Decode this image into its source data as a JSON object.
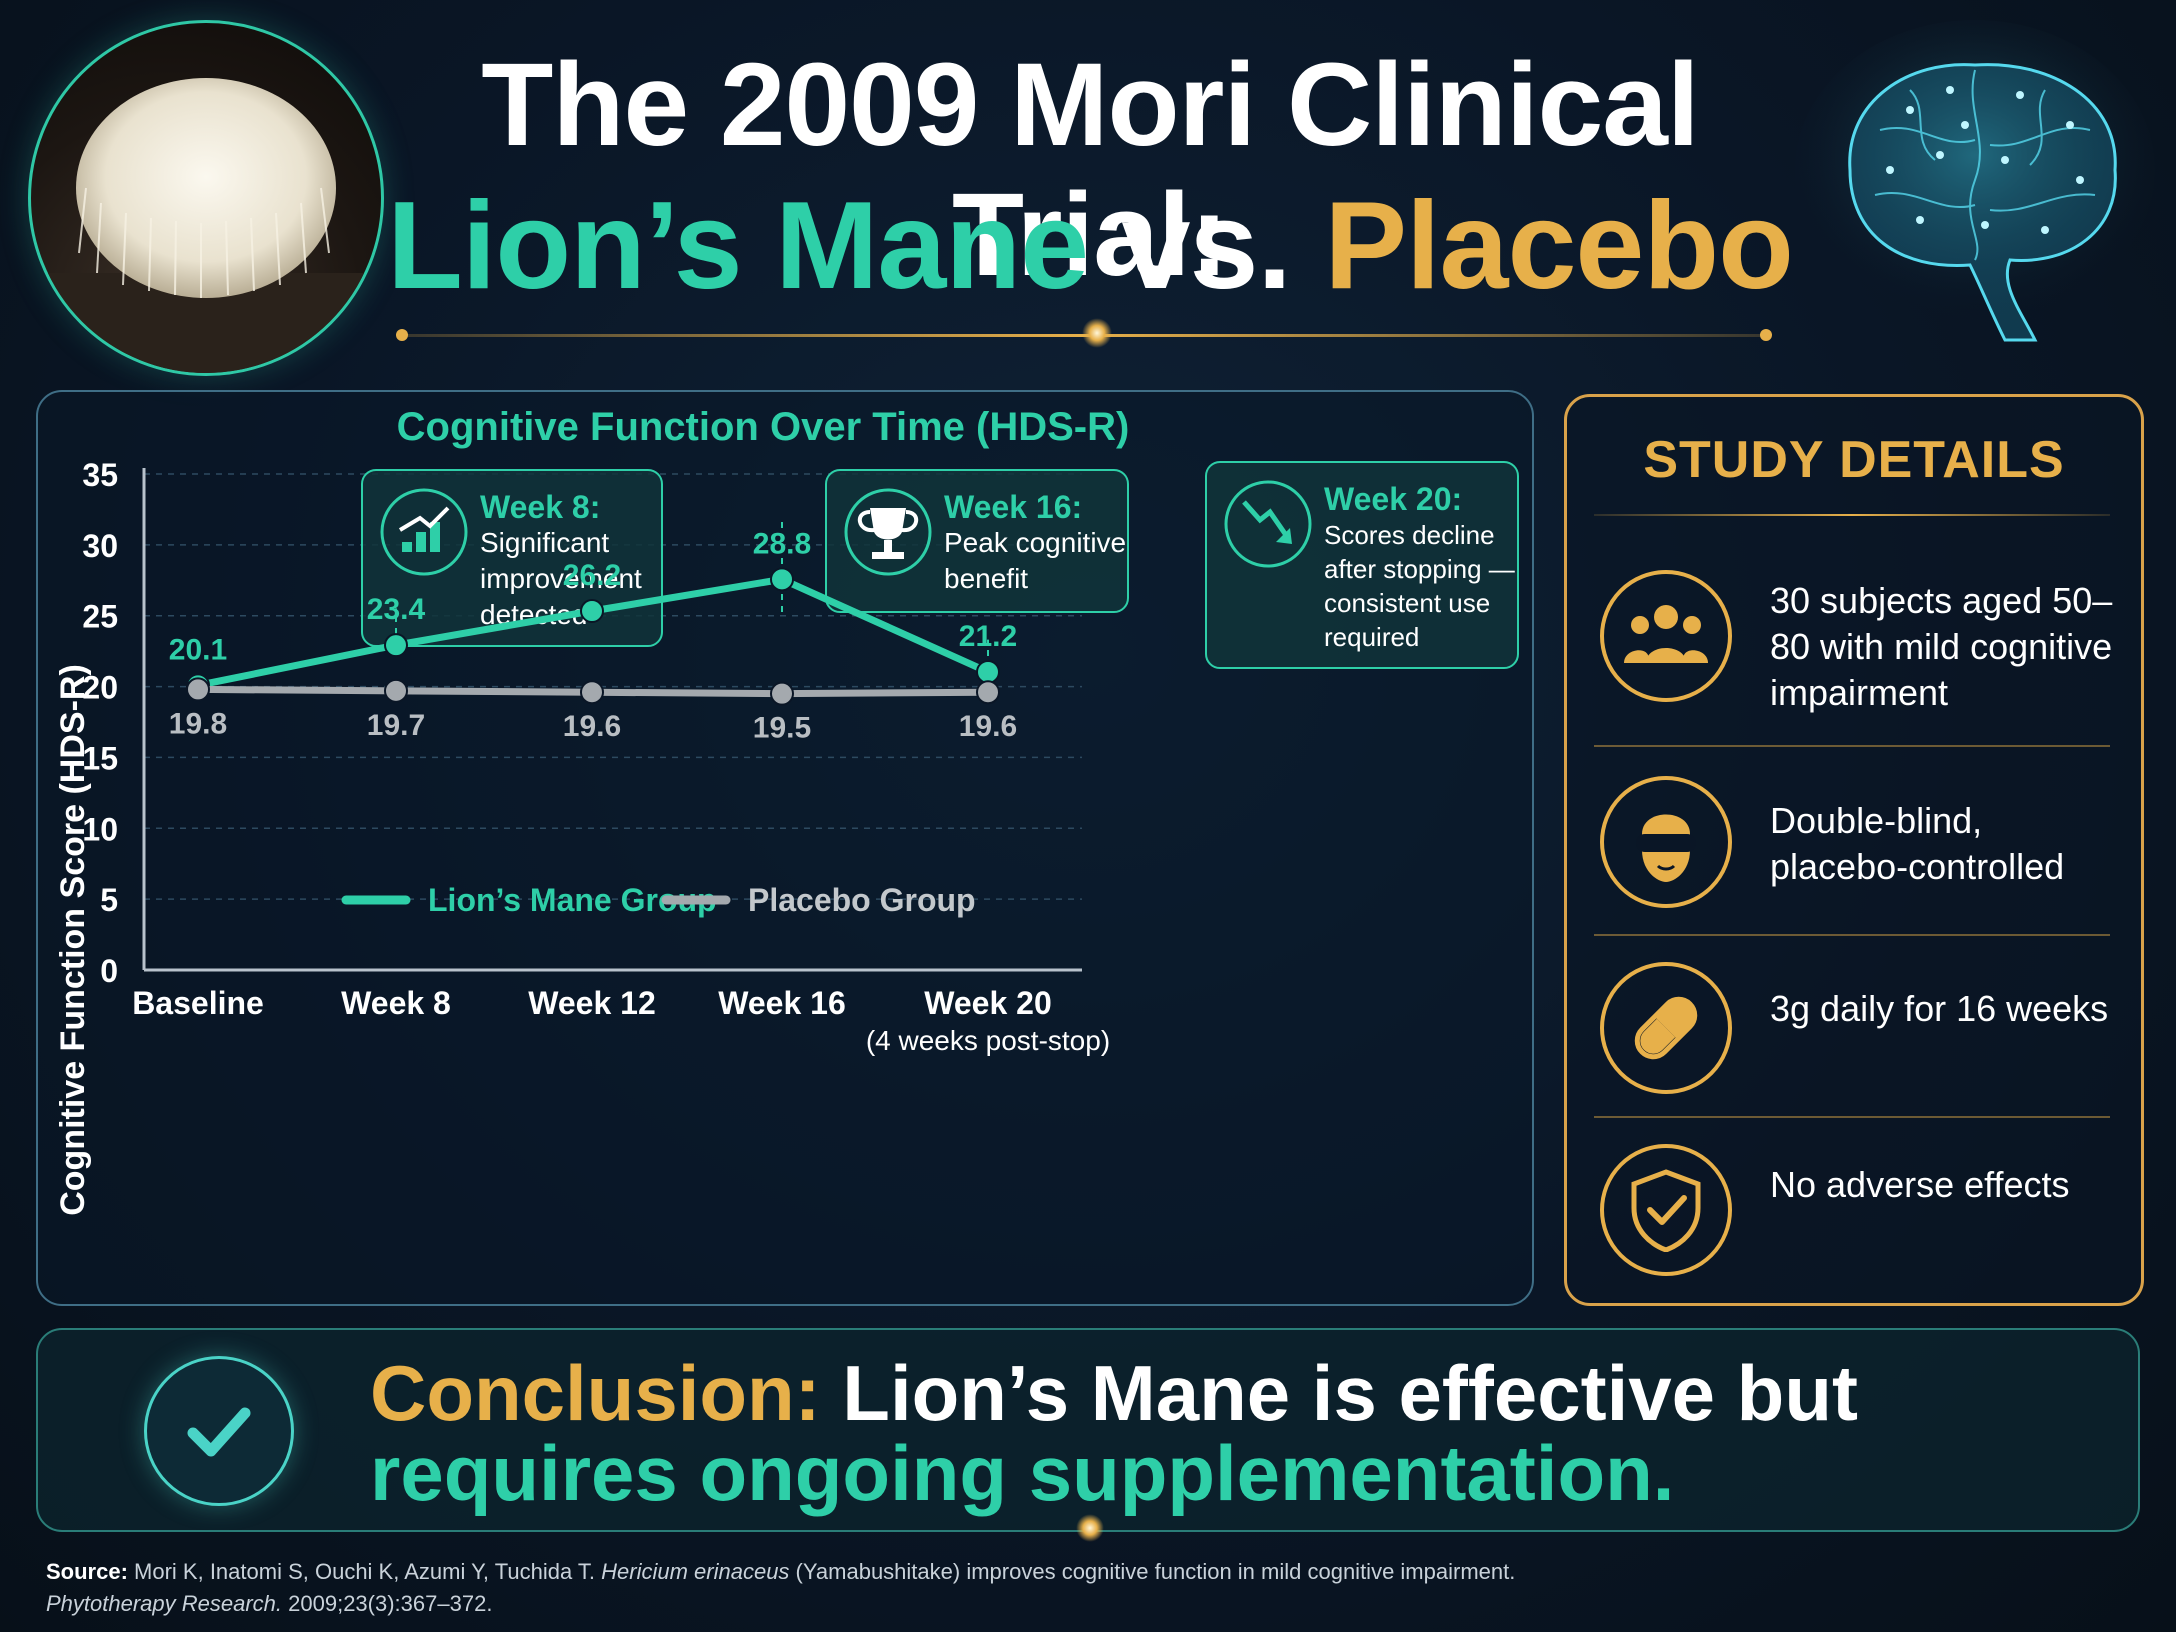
{
  "header": {
    "title_line1": "The 2009 Mori Clinical Trial:",
    "title_a": "Lion’s Mane",
    "title_vs": " vs. ",
    "title_b": "Placebo"
  },
  "chart_data": {
    "type": "line",
    "title": "Cognitive Function Over Time (HDS-R)",
    "ylabel": "Cognitive Function Score (HDS-R)",
    "xlabel": "",
    "categories": [
      "Baseline",
      "Week 8",
      "Week 12",
      "Week 16",
      "Week 20"
    ],
    "category_sublabels": [
      "",
      "",
      "",
      "",
      "(4 weeks post-stop)"
    ],
    "ylim": [
      0,
      35
    ],
    "yticks": [
      0,
      5,
      10,
      15,
      20,
      25,
      30,
      35
    ],
    "grid": true,
    "legend_position": "bottom-center",
    "series": [
      {
        "name": "Lion’s Mane Group",
        "color": "#2ecfa8",
        "values": [
          20.1,
          23.4,
          26.2,
          28.8,
          21.2
        ],
        "labels": [
          "20.1",
          "23.4",
          "26.2",
          "28.8",
          "21.2"
        ]
      },
      {
        "name": "Placebo Group",
        "color": "#a4a9ae",
        "values": [
          19.8,
          19.7,
          19.6,
          19.5,
          19.6
        ],
        "labels": [
          "19.8",
          "19.7",
          "19.6",
          "19.5",
          "19.6"
        ]
      }
    ],
    "annotations": [
      {
        "category_index": 1,
        "icon": "chart-up-icon",
        "title": "Week 8:",
        "lines": [
          "Significant",
          "improvement",
          "detected"
        ]
      },
      {
        "category_index": 3,
        "icon": "trophy-icon",
        "title": "Week 16:",
        "lines": [
          "Peak cognitive",
          "benefit"
        ]
      },
      {
        "category_index": 4,
        "icon": "trend-down-icon",
        "title": "Week 20:",
        "lines": [
          "Scores decline",
          "after stopping —",
          "consistent use",
          "required"
        ]
      }
    ]
  },
  "study_details": {
    "title": "STUDY DETAILS",
    "items": [
      {
        "icon": "people-icon",
        "text": "30 subjects aged 50–80 with mild cognitive impairment"
      },
      {
        "icon": "blindfold-icon",
        "text": "Double-blind, placebo-controlled"
      },
      {
        "icon": "pill-icon",
        "text": "3g daily for 16 weeks"
      },
      {
        "icon": "shield-check-icon",
        "text": "No adverse effects"
      }
    ]
  },
  "conclusion": {
    "label": "Conclusion:",
    "text_line1": " Lion’s Mane is effective but",
    "text_line2": "requires ongoing supplementation."
  },
  "source": {
    "label": "Source:",
    "authors": " Mori K, Inatomi S, Ouchi K, Azumi Y, Tuchida T. ",
    "species": "Hericium erinaceus",
    "title_rest": " (Yamabushitake) improves cognitive function in mild cognitive impairment.",
    "journal": "Phytotherapy Research.",
    "citation": " 2009;23(3):367–372."
  },
  "colors": {
    "teal": "#2ecfa8",
    "gold": "#e7b04a",
    "gray": "#a4a9ae",
    "background": "#0a1626"
  }
}
